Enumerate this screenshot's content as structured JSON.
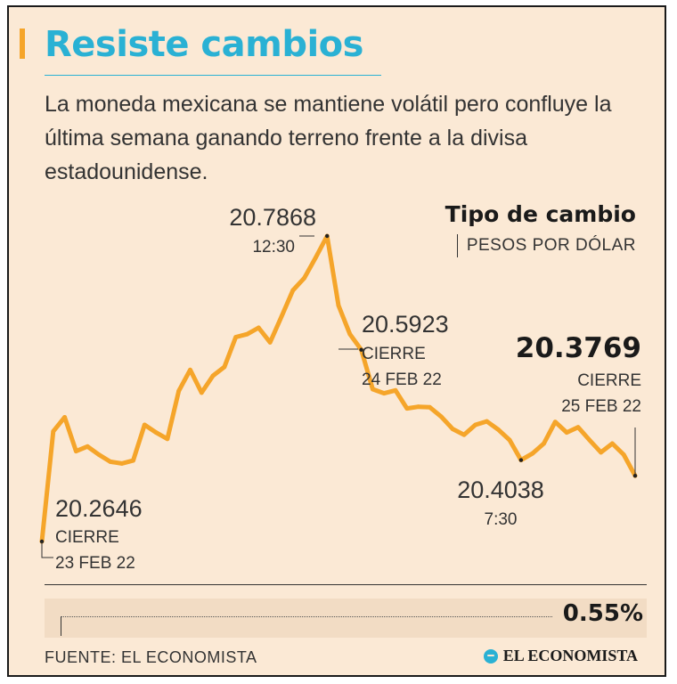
{
  "header": {
    "title": "Resiste cambios",
    "subtitle": "La moneda mexicana se mantiene volátil pero confluye la última semana ganando terreno frente a la divisa estadounidense."
  },
  "chart_data": {
    "type": "line",
    "title": "Tipo de cambio",
    "unit": "PESOS POR DÓLAR",
    "series": [
      {
        "name": "Tipo de cambio",
        "values": [
          20.2646,
          20.453,
          20.477,
          20.419,
          20.427,
          20.413,
          20.401,
          20.398,
          20.403,
          20.464,
          20.451,
          20.44,
          20.522,
          20.558,
          20.519,
          20.548,
          20.563,
          20.614,
          20.619,
          20.63,
          20.605,
          20.649,
          20.694,
          20.715,
          20.75,
          20.7868,
          20.668,
          20.619,
          20.5923,
          20.525,
          20.518,
          20.523,
          20.492,
          20.495,
          20.494,
          20.478,
          20.457,
          20.447,
          20.464,
          20.47,
          20.456,
          20.438,
          20.4038,
          20.415,
          20.432,
          20.469,
          20.451,
          20.46,
          20.438,
          20.417,
          20.432,
          20.413,
          20.3769
        ]
      }
    ],
    "annotations": [
      {
        "value": "20.2646",
        "label": "CIERRE",
        "date": "23 FEB 22"
      },
      {
        "value": "20.7868",
        "label": "12:30"
      },
      {
        "value": "20.5923",
        "label": "CIERRE",
        "date": "24 FEB 22"
      },
      {
        "value": "20.4038",
        "label": "7:30"
      },
      {
        "value": "20.3769",
        "label": "CIERRE",
        "date": "25 FEB 22"
      }
    ],
    "change": "0.55%",
    "colors": {
      "line": "#f5a52a",
      "title": "#2ab1d4",
      "text": "#333333"
    }
  },
  "footer": {
    "source": "FUENTE: EL ECONOMISTA",
    "brand": "EL ECONOMISTA"
  }
}
